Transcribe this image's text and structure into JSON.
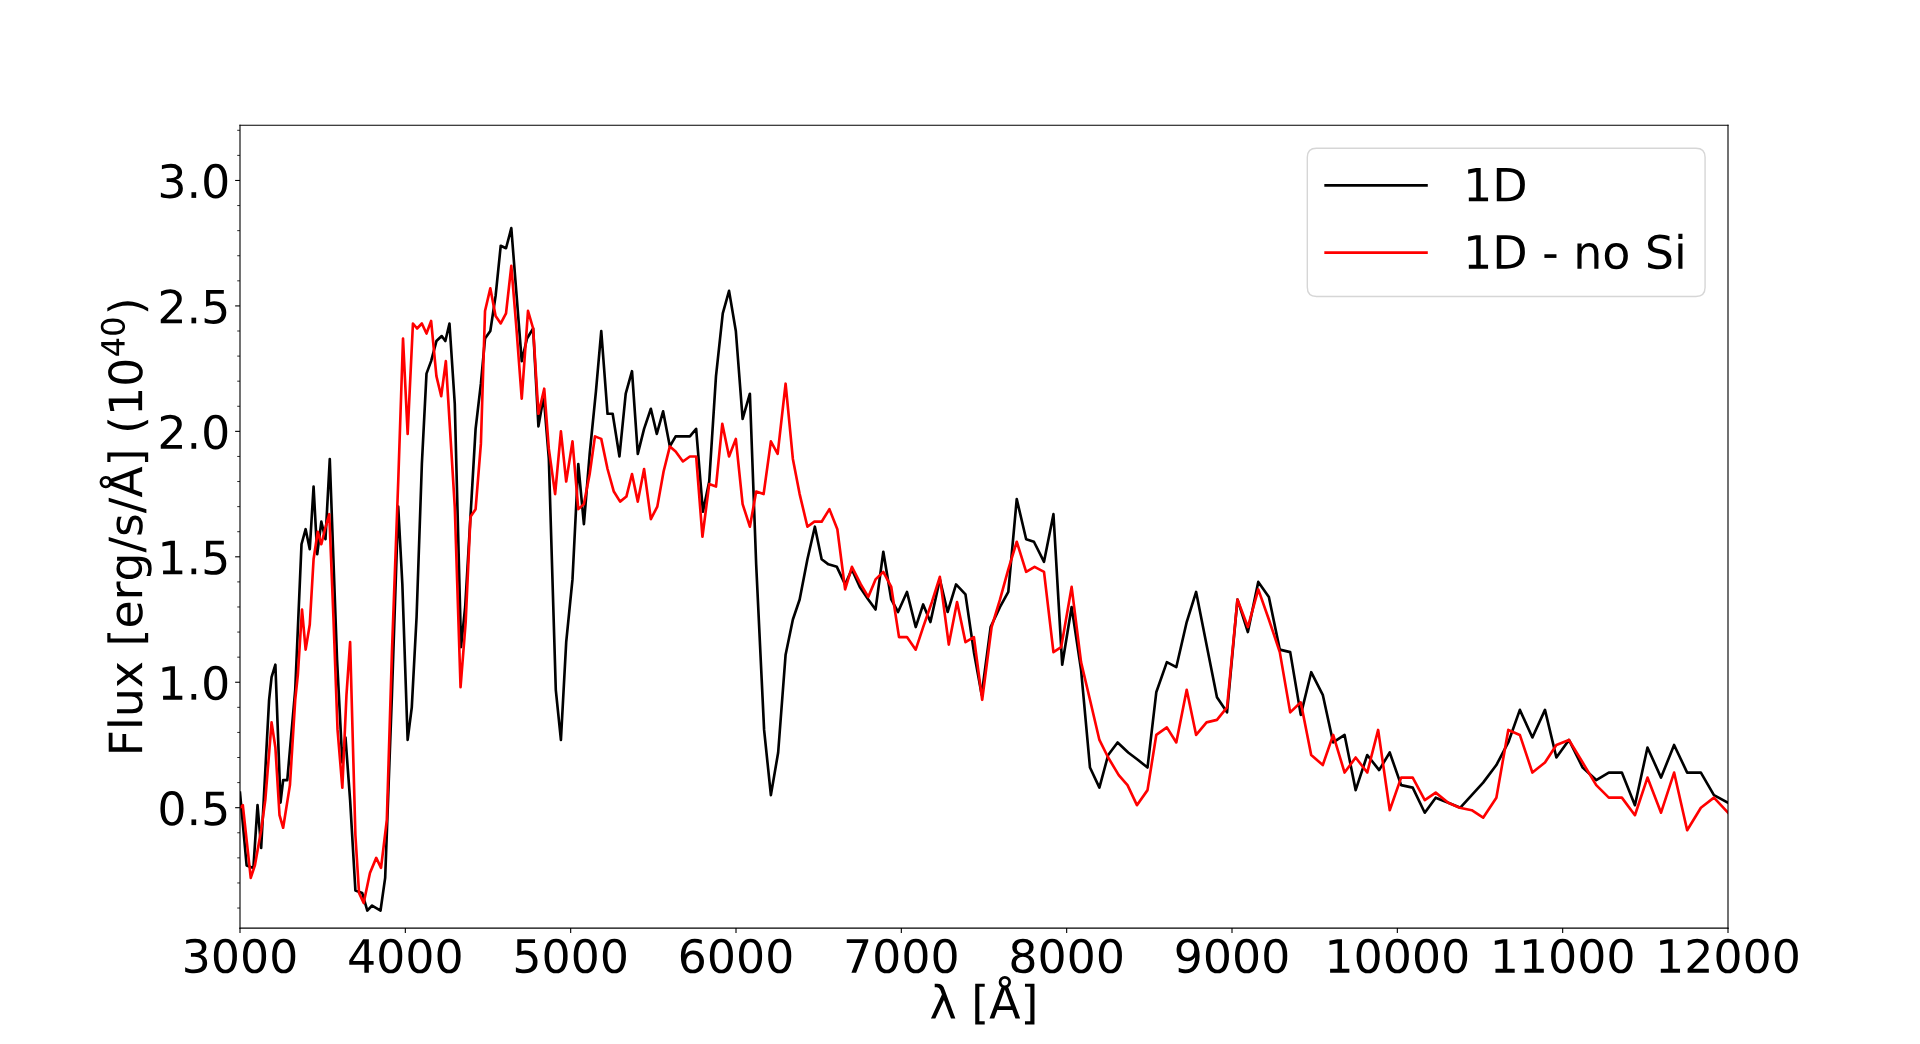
{
  "chart_data": {
    "type": "line",
    "xlabel": "λ [Å]",
    "ylabel": "Flux [erg/s/Å] (10$^{40}$)",
    "xlim": [
      3000,
      12000
    ],
    "ylim": [
      0.02,
      3.22
    ],
    "xticks": [
      3000,
      4000,
      5000,
      6000,
      7000,
      8000,
      9000,
      10000,
      11000,
      12000
    ],
    "yticks": [
      {
        "value": 0.5,
        "label": "0.5"
      },
      {
        "value": 1.0,
        "label": "1.0"
      },
      {
        "value": 1.5,
        "label": "1.5"
      },
      {
        "value": 2.0,
        "label": "2.0"
      },
      {
        "value": 2.5,
        "label": "2.5"
      },
      {
        "value": 3.0,
        "label": "3.0"
      }
    ],
    "grid": false,
    "legend": "top right",
    "marker": "none",
    "line_style": "solid",
    "series": [
      {
        "name": "1D",
        "color": "#000000",
        "x": [
          3000,
          3040,
          3081,
          3106,
          3128,
          3176,
          3191,
          3214,
          3245,
          3261,
          3286,
          3334,
          3372,
          3397,
          3422,
          3445,
          3467,
          3492,
          3517,
          3543,
          3587,
          3619,
          3638,
          3666,
          3698,
          3739,
          3770,
          3799,
          3850,
          3878,
          3919,
          3957,
          3982,
          4014,
          4039,
          4068,
          4100,
          4128,
          4156,
          4188,
          4220,
          4242,
          4267,
          4299,
          4337,
          4362,
          4394,
          4425,
          4457,
          4482,
          4514,
          4546,
          4577,
          4609,
          4641,
          4672,
          4704,
          4736,
          4773,
          4805,
          4837,
          4868,
          4910,
          4941,
          4973,
          5011,
          5046,
          5080,
          5115,
          5153,
          5185,
          5223,
          5254,
          5295,
          5333,
          5371,
          5406,
          5444,
          5485,
          5521,
          5559,
          5600,
          5635,
          5721,
          5759,
          5800,
          5838,
          5879,
          5920,
          5958,
          5999,
          6040,
          6084,
          6122,
          6170,
          6211,
          6255,
          6300,
          6344,
          6385,
          6432,
          6477,
          6518,
          6559,
          6610,
          6660,
          6701,
          6749,
          6800,
          6844,
          6891,
          6939,
          6980,
          7034,
          7087,
          7132,
          7176,
          7233,
          7280,
          7331,
          7388,
          7439,
          7486,
          7540,
          7597,
          7647,
          7698,
          7755,
          7802,
          7863,
          7920,
          7973,
          8030,
          8087,
          8141,
          8198,
          8251,
          8308,
          8372,
          8432,
          8489,
          8542,
          8606,
          8663,
          8726,
          8783,
          8852,
          8909,
          8970,
          9033,
          9096,
          9159,
          9223,
          9289,
          9352,
          9416,
          9479,
          9549,
          9612,
          9681,
          9748,
          9818,
          9890,
          9954,
          10023,
          10093,
          10166,
          10232,
          10308,
          10381,
          10450,
          10519,
          10599,
          10671,
          10741,
          10817,
          10893,
          10962,
          11038,
          11121,
          11203,
          11279,
          11358,
          11437,
          11513,
          11595,
          11674,
          11753,
          11836,
          11915,
          12000
        ],
        "values": [
          0.56,
          0.27,
          0.26,
          0.51,
          0.34,
          0.93,
          1.02,
          1.07,
          0.52,
          0.61,
          0.61,
          0.97,
          1.55,
          1.61,
          1.53,
          1.78,
          1.51,
          1.64,
          1.57,
          1.89,
          1.09,
          0.68,
          0.78,
          0.53,
          0.17,
          0.16,
          0.09,
          0.11,
          0.09,
          0.22,
          0.95,
          1.7,
          1.39,
          0.77,
          0.9,
          1.26,
          1.87,
          2.23,
          2.28,
          2.36,
          2.38,
          2.36,
          2.43,
          2.11,
          1.14,
          1.3,
          1.66,
          2.01,
          2.19,
          2.37,
          2.4,
          2.54,
          2.74,
          2.73,
          2.81,
          2.55,
          2.28,
          2.37,
          2.41,
          2.02,
          2.14,
          1.89,
          0.97,
          0.77,
          1.16,
          1.41,
          1.87,
          1.63,
          1.91,
          2.16,
          2.4,
          2.07,
          2.07,
          1.9,
          2.15,
          2.24,
          1.91,
          2.01,
          2.09,
          1.99,
          2.08,
          1.94,
          1.98,
          1.98,
          2.01,
          1.68,
          1.8,
          2.22,
          2.47,
          2.56,
          2.4,
          2.05,
          2.15,
          1.47,
          0.81,
          0.55,
          0.72,
          1.11,
          1.25,
          1.33,
          1.49,
          1.62,
          1.49,
          1.47,
          1.46,
          1.39,
          1.45,
          1.38,
          1.33,
          1.29,
          1.52,
          1.33,
          1.28,
          1.36,
          1.22,
          1.31,
          1.24,
          1.41,
          1.28,
          1.39,
          1.35,
          1.12,
          0.95,
          1.22,
          1.3,
          1.36,
          1.73,
          1.57,
          1.56,
          1.48,
          1.67,
          1.07,
          1.3,
          1.05,
          0.66,
          0.58,
          0.71,
          0.76,
          0.72,
          0.69,
          0.66,
          0.96,
          1.08,
          1.06,
          1.24,
          1.36,
          1.13,
          0.94,
          0.88,
          1.33,
          1.2,
          1.4,
          1.34,
          1.13,
          1.12,
          0.87,
          1.04,
          0.95,
          0.76,
          0.79,
          0.57,
          0.71,
          0.65,
          0.72,
          0.59,
          0.58,
          0.48,
          0.54,
          0.52,
          0.5,
          0.55,
          0.6,
          0.67,
          0.76,
          0.89,
          0.78,
          0.89,
          0.7,
          0.77,
          0.66,
          0.61,
          0.64,
          0.64,
          0.51,
          0.74,
          0.62,
          0.75,
          0.64,
          0.64,
          0.55,
          0.52
        ]
      },
      {
        "name": "1D - no Si",
        "color": "#ff0000",
        "x": [
          3000,
          3017,
          3065,
          3090,
          3128,
          3153,
          3191,
          3214,
          3239,
          3261,
          3302,
          3334,
          3350,
          3375,
          3397,
          3422,
          3445,
          3470,
          3492,
          3514,
          3540,
          3565,
          3590,
          3619,
          3644,
          3666,
          3698,
          3720,
          3748,
          3786,
          3824,
          3853,
          3888,
          3919,
          3957,
          3986,
          4014,
          4046,
          4071,
          4100,
          4128,
          4156,
          4188,
          4217,
          4245,
          4299,
          4334,
          4365,
          4394,
          4425,
          4457,
          4482,
          4514,
          4546,
          4577,
          4609,
          4641,
          4672,
          4704,
          4742,
          4773,
          4805,
          4840,
          4868,
          4906,
          4941,
          4973,
          5011,
          5046,
          5080,
          5115,
          5147,
          5185,
          5223,
          5261,
          5299,
          5337,
          5371,
          5406,
          5444,
          5485,
          5524,
          5562,
          5600,
          5635,
          5679,
          5721,
          5759,
          5797,
          5838,
          5879,
          5917,
          5958,
          5999,
          6040,
          6084,
          6122,
          6167,
          6211,
          6252,
          6300,
          6344,
          6385,
          6432,
          6474,
          6518,
          6565,
          6613,
          6660,
          6701,
          6755,
          6800,
          6844,
          6891,
          6939,
          6986,
          7034,
          7087,
          7132,
          7185,
          7233,
          7287,
          7337,
          7388,
          7439,
          7489,
          7546,
          7597,
          7647,
          7698,
          7755,
          7806,
          7863,
          7920,
          7967,
          8030,
          8087,
          8141,
          8198,
          8251,
          8315,
          8368,
          8425,
          8489,
          8542,
          8606,
          8663,
          8726,
          8783,
          8846,
          8909,
          8970,
          9033,
          9096,
          9159,
          9223,
          9289,
          9352,
          9416,
          9479,
          9549,
          9612,
          9681,
          9748,
          9818,
          9884,
          9954,
          10023,
          10093,
          10166,
          10232,
          10308,
          10377,
          10450,
          10519,
          10599,
          10671,
          10741,
          10817,
          10893,
          10962,
          11038,
          11121,
          11203,
          11279,
          11358,
          11437,
          11513,
          11595,
          11674,
          11753,
          11836,
          11915,
          12000
        ],
        "values": [
          0.5,
          0.51,
          0.22,
          0.27,
          0.41,
          0.53,
          0.84,
          0.74,
          0.47,
          0.42,
          0.59,
          0.93,
          1.03,
          1.29,
          1.13,
          1.23,
          1.49,
          1.6,
          1.55,
          1.61,
          1.67,
          1.26,
          0.81,
          0.58,
          0.95,
          1.16,
          0.39,
          0.16,
          0.12,
          0.24,
          0.3,
          0.26,
          0.45,
          1.12,
          1.8,
          2.37,
          1.99,
          2.43,
          2.41,
          2.43,
          2.39,
          2.44,
          2.22,
          2.14,
          2.28,
          1.7,
          0.98,
          1.24,
          1.66,
          1.69,
          1.95,
          2.48,
          2.57,
          2.46,
          2.43,
          2.47,
          2.66,
          2.41,
          2.13,
          2.48,
          2.41,
          2.07,
          2.17,
          1.93,
          1.75,
          2.0,
          1.8,
          1.96,
          1.69,
          1.71,
          1.83,
          1.98,
          1.97,
          1.85,
          1.76,
          1.72,
          1.74,
          1.83,
          1.72,
          1.85,
          1.65,
          1.7,
          1.84,
          1.94,
          1.92,
          1.88,
          1.9,
          1.9,
          1.58,
          1.79,
          1.78,
          2.03,
          1.9,
          1.97,
          1.71,
          1.62,
          1.76,
          1.75,
          1.96,
          1.91,
          2.19,
          1.89,
          1.75,
          1.62,
          1.64,
          1.64,
          1.69,
          1.61,
          1.37,
          1.46,
          1.39,
          1.34,
          1.41,
          1.44,
          1.38,
          1.18,
          1.18,
          1.13,
          1.22,
          1.32,
          1.42,
          1.15,
          1.32,
          1.16,
          1.18,
          0.93,
          1.22,
          1.33,
          1.45,
          1.56,
          1.44,
          1.46,
          1.44,
          1.12,
          1.14,
          1.38,
          1.08,
          0.93,
          0.77,
          0.7,
          0.63,
          0.59,
          0.51,
          0.57,
          0.79,
          0.82,
          0.76,
          0.97,
          0.79,
          0.84,
          0.85,
          0.9,
          1.33,
          1.22,
          1.37,
          1.25,
          1.12,
          0.88,
          0.92,
          0.71,
          0.67,
          0.79,
          0.64,
          0.7,
          0.64,
          0.81,
          0.49,
          0.62,
          0.62,
          0.53,
          0.56,
          0.52,
          0.5,
          0.49,
          0.46,
          0.54,
          0.81,
          0.79,
          0.64,
          0.68,
          0.75,
          0.77,
          0.68,
          0.59,
          0.54,
          0.54,
          0.47,
          0.62,
          0.48,
          0.64,
          0.41,
          0.5,
          0.54,
          0.48
        ]
      }
    ]
  }
}
